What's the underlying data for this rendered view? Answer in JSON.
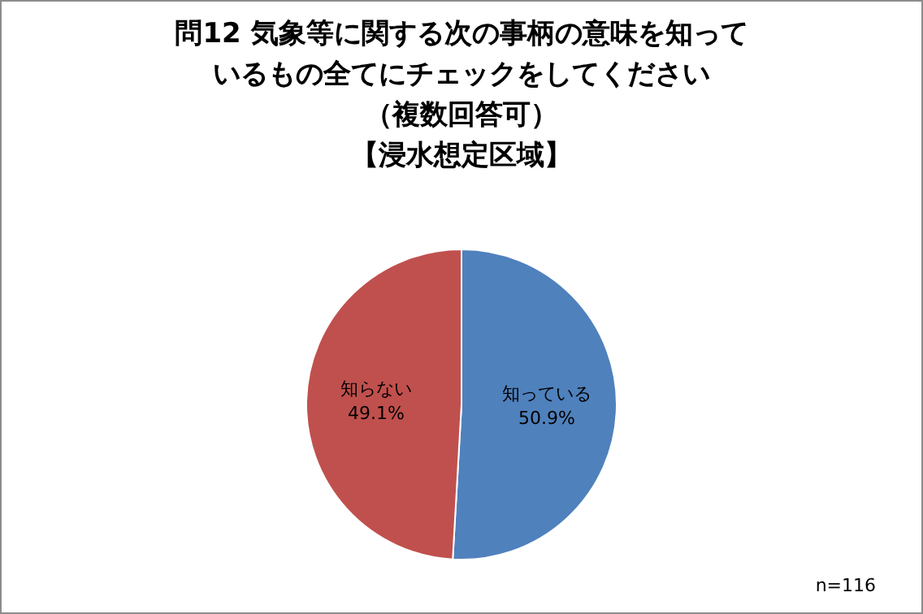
{
  "chart_data": {
    "type": "pie",
    "title": "問12 気象等に関する次の事柄の意味を知っているもの全てにチェックをしてください",
    "subtitle": "（複数回答可）【浸水想定区域】",
    "categories": [
      "知っている",
      "知らない"
    ],
    "values": [
      50.9,
      49.1
    ],
    "value_labels": [
      "50.9%",
      "49.1%"
    ],
    "colors": [
      "#4f81bd",
      "#c0504d"
    ],
    "legend": false,
    "annotations": [
      "n=116"
    ]
  }
}
